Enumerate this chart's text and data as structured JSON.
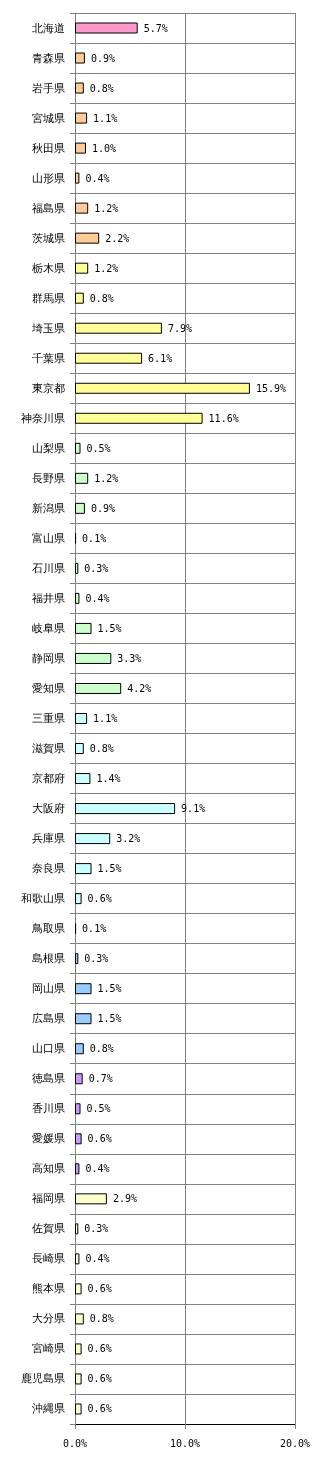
{
  "chart_data": {
    "type": "bar",
    "orientation": "horizontal",
    "categories": [
      "北海道",
      "青森県",
      "岩手県",
      "宮城県",
      "秋田県",
      "山形県",
      "福島県",
      "茨城県",
      "栃木県",
      "群馬県",
      "埼玉県",
      "千葉県",
      "東京都",
      "神奈川県",
      "山梨県",
      "長野県",
      "新潟県",
      "富山県",
      "石川県",
      "福井県",
      "岐阜県",
      "静岡県",
      "愛知県",
      "三重県",
      "滋賀県",
      "京都府",
      "大阪府",
      "兵庫県",
      "奈良県",
      "和歌山県",
      "鳥取県",
      "島根県",
      "岡山県",
      "広島県",
      "山口県",
      "徳島県",
      "香川県",
      "愛媛県",
      "高知県",
      "福岡県",
      "佐賀県",
      "長崎県",
      "熊本県",
      "大分県",
      "宮崎県",
      "鹿児島県",
      "沖縄県"
    ],
    "values": [
      5.7,
      0.9,
      0.8,
      1.1,
      1.0,
      0.4,
      1.2,
      2.2,
      1.2,
      0.8,
      7.9,
      6.1,
      15.9,
      11.6,
      0.5,
      1.2,
      0.9,
      0.1,
      0.3,
      0.4,
      1.5,
      3.3,
      4.2,
      1.1,
      0.8,
      1.4,
      9.1,
      3.2,
      1.5,
      0.6,
      0.1,
      0.3,
      1.5,
      1.5,
      0.8,
      0.7,
      0.5,
      0.6,
      0.4,
      2.9,
      0.3,
      0.4,
      0.6,
      0.8,
      0.6,
      0.6,
      0.6
    ],
    "value_labels": [
      "5.7%",
      "0.9%",
      "0.8%",
      "1.1%",
      "1.0%",
      "0.4%",
      "1.2%",
      "2.2%",
      "1.2%",
      "0.8%",
      "7.9%",
      "6.1%",
      "15.9%",
      "11.6%",
      "0.5%",
      "1.2%",
      "0.9%",
      "0.1%",
      "0.3%",
      "0.4%",
      "1.5%",
      "3.3%",
      "4.2%",
      "1.1%",
      "0.8%",
      "1.4%",
      "9.1%",
      "3.2%",
      "1.5%",
      "0.6%",
      "0.1%",
      "0.3%",
      "1.5%",
      "1.5%",
      "0.8%",
      "0.7%",
      "0.5%",
      "0.6%",
      "0.4%",
      "2.9%",
      "0.3%",
      "0.4%",
      "0.6%",
      "0.8%",
      "0.6%",
      "0.6%",
      "0.6%"
    ],
    "colors": [
      "#ff99cc",
      "#ffcc99",
      "#ffcc99",
      "#ffcc99",
      "#ffcc99",
      "#ffcc99",
      "#ffcc99",
      "#ffcc99",
      "#ffff99",
      "#ffff99",
      "#ffff99",
      "#ffff99",
      "#ffff99",
      "#ffff99",
      "#ccffcc",
      "#ccffcc",
      "#ccffcc",
      "#ccffcc",
      "#ccffcc",
      "#ccffcc",
      "#ccffcc",
      "#ccffcc",
      "#ccffcc",
      "#ccffff",
      "#ccffff",
      "#ccffff",
      "#ccffff",
      "#ccffff",
      "#ccffff",
      "#ccffff",
      "#99ccff",
      "#99ccff",
      "#99ccff",
      "#99ccff",
      "#99ccff",
      "#cc99ff",
      "#cc99ff",
      "#cc99ff",
      "#cc99ff",
      "#ffffcc",
      "#ffffcc",
      "#ffffcc",
      "#ffffcc",
      "#ffffcc",
      "#ffffcc",
      "#ffffcc",
      "#ffffcc"
    ],
    "xlim": [
      0,
      20
    ],
    "xticks": [
      {
        "value": 0,
        "label": "0.0%"
      },
      {
        "value": 10,
        "label": "10.0%"
      },
      {
        "value": 20,
        "label": "20.0%"
      }
    ],
    "grid": true
  }
}
